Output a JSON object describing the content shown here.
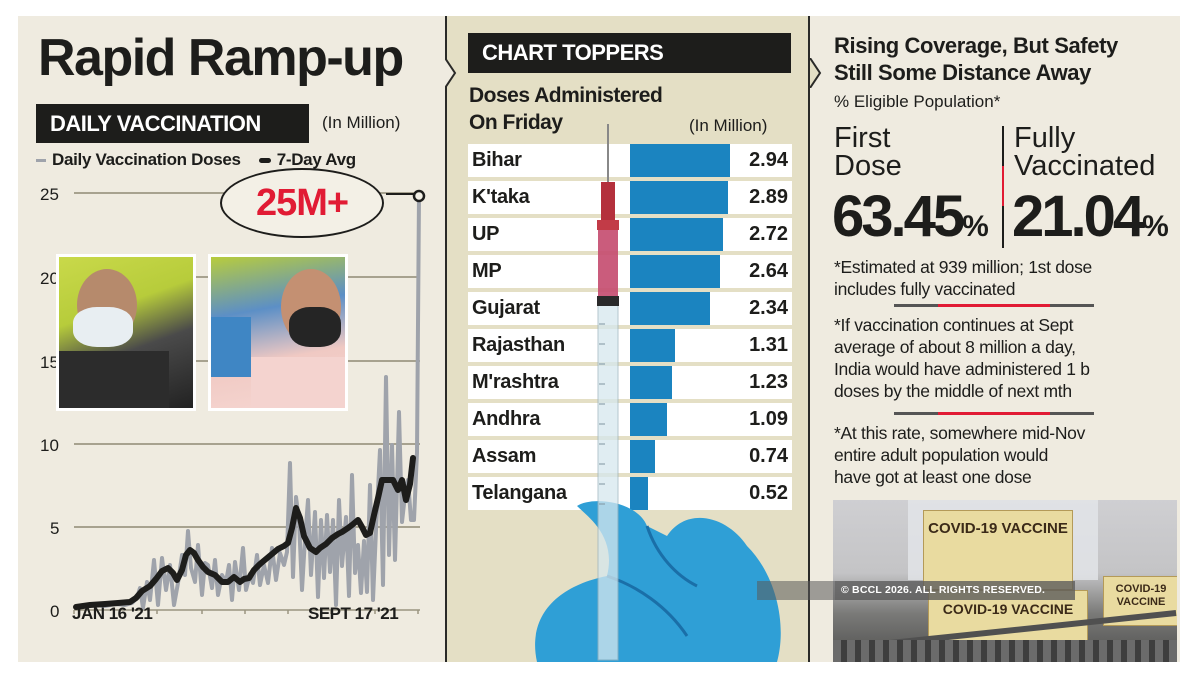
{
  "panel_daily": {
    "title": "Rapid Ramp-up",
    "section_label": "DAILY VACCINATION",
    "unit": "(In Million)",
    "legend": {
      "daily": "Daily Vaccination Doses",
      "avg": "7-Day Avg"
    },
    "callout": "25M+",
    "x_start": "JAN 16 '21",
    "x_end": "SEPT 17 '21",
    "y_ticks": [
      "0",
      "5",
      "10",
      "15",
      "20",
      "25"
    ]
  },
  "panel_toppers": {
    "section_label": "CHART TOPPERS",
    "subtitle_line1": "Doses Administered",
    "subtitle_line2": "On Friday",
    "unit": "(In Million)",
    "bar_color": "#1b84c0"
  },
  "panel_coverage": {
    "title_line1": "Rising Coverage, But Safety",
    "title_line2": "Still Some Distance Away",
    "subtitle": "% Eligible Population*",
    "first_dose": {
      "label_line1": "First",
      "label_line2": "Dose",
      "value": "63.45",
      "unit": "%"
    },
    "fully": {
      "label_line1": "Fully",
      "label_line2": "Vaccinated",
      "value": "21.04",
      "unit": "%"
    },
    "notes": [
      [
        "*Estimated at 939 million; 1st dose",
        "includes fully vaccinated"
      ],
      [
        "*If vaccination continues at Sept",
        "average of about 8 million a day,",
        "India would have administered 1 b",
        "doses by the middle of next mth"
      ],
      [
        "*At this rate, somewhere mid-Nov",
        "entire adult population would",
        "have got at least one dose"
      ]
    ],
    "box_text_1": "COVID-19 VACCINE",
    "box_text_2": "COVID-19 VACCINE",
    "box_text_3": "COVID-19 VACCINE"
  },
  "copyright": "© BCCL 2026. ALL RIGHTS RESERVED.",
  "colors": {
    "accent_red": "#e11b34",
    "bar_blue": "#1b84c0",
    "paper": "#efebe0",
    "panel_mid": "#e4dfc5",
    "ink": "#1d1d1b",
    "daily_gray": "#9fa3ab"
  },
  "chart_data": [
    {
      "type": "line",
      "title": "DAILY VACCINATION",
      "ylabel": "In Million",
      "xlabel": "",
      "x_range": [
        "JAN 16 '21",
        "SEPT 17 '21"
      ],
      "ylim": [
        0,
        25
      ],
      "y_ticks": [
        0,
        5,
        10,
        15,
        20,
        25
      ],
      "grid": true,
      "legend": [
        "Daily Vaccination Doses",
        "7-Day Avg"
      ],
      "annotations": [
        "25M+ (peak on Sept 17 '21)"
      ],
      "series": [
        {
          "name": "7-Day Avg",
          "x": [
            "Jan 16",
            "Feb 1",
            "Feb 15",
            "Mar 1",
            "Mar 15",
            "Apr 1",
            "Apr 8",
            "Apr 15",
            "May 1",
            "May 15",
            "Jun 1",
            "Jun 15",
            "Jun 21",
            "Jul 1",
            "Jul 15",
            "Aug 1",
            "Aug 15",
            "Aug 25",
            "Sep 1",
            "Sep 10",
            "Sep 17"
          ],
          "values": [
            0.1,
            0.2,
            0.3,
            0.4,
            1.5,
            2.8,
            3.0,
            2.4,
            3.6,
            2.6,
            1.8,
            2.2,
            3.2,
            5.6,
            3.5,
            4.0,
            5.6,
            5.2,
            6.2,
            8.0,
            8.5
          ]
        },
        {
          "name": "Daily Vaccination Doses",
          "x": [
            "Jan 16",
            "Mar 1",
            "Apr 8",
            "May 1",
            "Jun 1",
            "Jun 21",
            "Jul 15",
            "Aug 15",
            "Aug 31",
            "Sep 6",
            "Sep 17"
          ],
          "values": [
            0.2,
            0.5,
            4.0,
            4.8,
            2.5,
            8.8,
            6.5,
            9.0,
            13.5,
            11.5,
            25.0
          ]
        }
      ]
    },
    {
      "type": "bar",
      "title": "CHART TOPPERS - Doses Administered On Friday",
      "ylabel": "In Million",
      "orientation": "horizontal",
      "categories": [
        "Bihar",
        "K'taka",
        "UP",
        "MP",
        "Gujarat",
        "Rajasthan",
        "M'rashtra",
        "Andhra",
        "Assam",
        "Telangana"
      ],
      "values": [
        2.94,
        2.89,
        2.72,
        2.64,
        2.34,
        1.31,
        1.23,
        1.09,
        0.74,
        0.52
      ]
    },
    {
      "type": "table",
      "title": "Rising Coverage, But Safety Still Some Distance Away (% Eligible Population)",
      "categories": [
        "First Dose",
        "Fully Vaccinated"
      ],
      "values": [
        63.45,
        21.04
      ]
    }
  ]
}
